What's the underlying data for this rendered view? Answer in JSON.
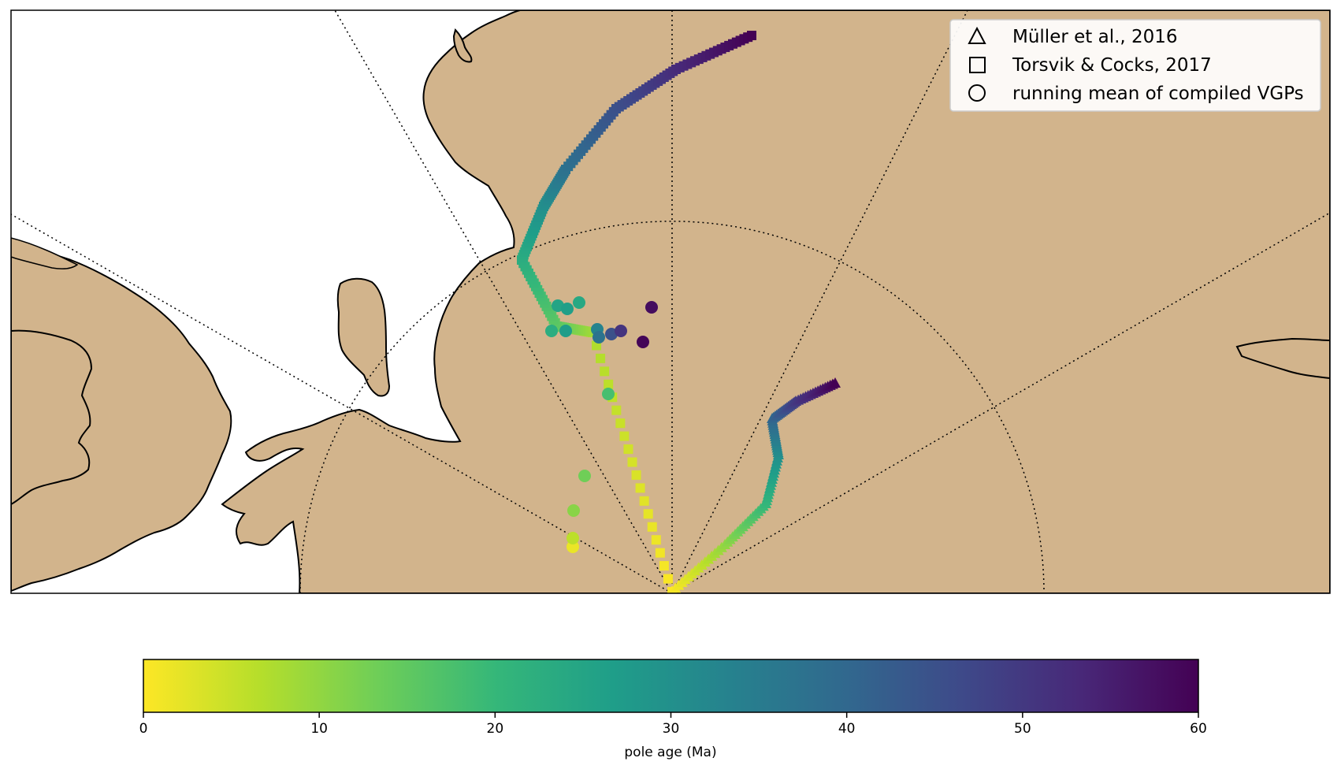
{
  "legend": {
    "placement": "top-right",
    "items": [
      {
        "marker": "triangle",
        "label": "Müller et al., 2016"
      },
      {
        "marker": "square",
        "label": "Torsvik & Cocks, 2017"
      },
      {
        "marker": "circle",
        "label": "running mean of compiled VGPs"
      }
    ]
  },
  "colorbar": {
    "label": "pole age (Ma)",
    "range": [
      0,
      60
    ],
    "ticks": [
      "0",
      "10",
      "20",
      "30",
      "40",
      "50",
      "60"
    ],
    "colormap": "viridis reversed",
    "stops": [
      "#fde725",
      "#b5de2b",
      "#6ece58",
      "#35b779",
      "#1f9e89",
      "#26828e",
      "#31688e",
      "#3e4989",
      "#482878",
      "#440154"
    ]
  },
  "colors": {
    "land": "#d2b48c",
    "ocean": "#ffffff",
    "coastline": "#000000",
    "graticule": "#000000"
  }
}
